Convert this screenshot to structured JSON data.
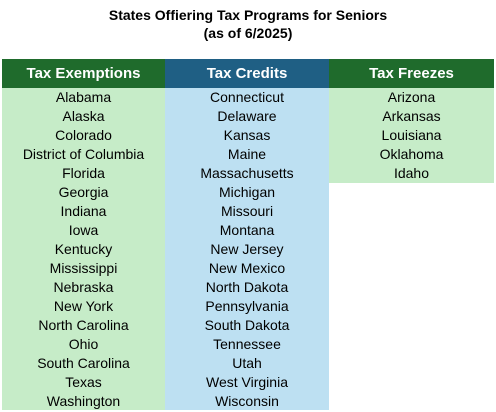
{
  "title": {
    "line1": "States Offiering Tax Programs for Seniors",
    "line2": "(as of 6/2025)"
  },
  "columns": [
    {
      "header": "Tax Exemptions",
      "items": [
        "Alabama",
        "Alaska",
        "Colorado",
        "District of Columbia",
        "Florida",
        "Georgia",
        "Indiana",
        "Iowa",
        "Kentucky",
        "Mississippi",
        "Nebraska",
        "New York",
        "North Carolina",
        "Ohio",
        "South Carolina",
        "Texas",
        "Washington"
      ]
    },
    {
      "header": "Tax Credits",
      "items": [
        "Connecticut",
        "Delaware",
        "Kansas",
        "Maine",
        "Massachusetts",
        "Michigan",
        "Missouri",
        "Montana",
        "New Jersey",
        "New Mexico",
        "North Dakota",
        "Pennsylvania",
        "South Dakota",
        "Tennessee",
        "Utah",
        "West Virginia",
        "Wisconsin"
      ]
    },
    {
      "header": "Tax Freezes",
      "items": [
        "Arizona",
        "Arkansas",
        "Louisiana",
        "Oklahoma",
        "Idaho"
      ]
    }
  ],
  "colors": {
    "green_header": "#1f6b2c",
    "blue_header": "#1f5f84",
    "green_fill": "#c6ecc8",
    "blue_fill": "#bde0f2"
  }
}
